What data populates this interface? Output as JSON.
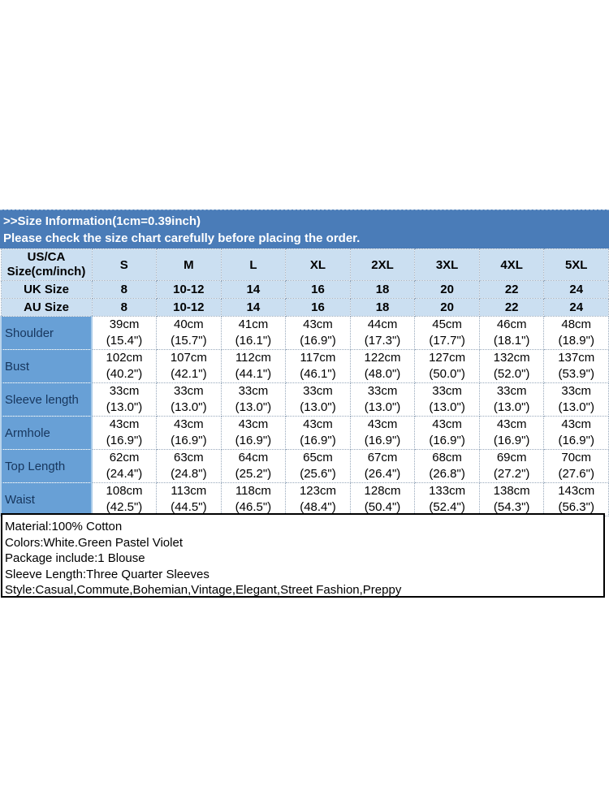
{
  "palette": {
    "banner_bg": "#4a7cb8",
    "banner_text": "#ffffff",
    "header_bg": "#cbdff1",
    "label_col_bg": "#68a0d6",
    "label_text": "#17365d",
    "grid_dotted_border": "#97a8bb",
    "details_border": "#000000"
  },
  "banner": {
    "line1": ">>Size Information(1cm=0.39inch)",
    "line2": "Please check the size chart carefully before placing the order."
  },
  "size_table": {
    "corner": {
      "line1": "US/CA",
      "line2": "Size(cm/inch)"
    },
    "size_headers": [
      "S",
      "M",
      "L",
      "XL",
      "2XL",
      "3XL",
      "4XL",
      "5XL"
    ],
    "conversion_rows": [
      {
        "label": "UK Size",
        "values": [
          "8",
          "10-12",
          "14",
          "16",
          "18",
          "20",
          "22",
          "24"
        ]
      },
      {
        "label": "AU Size",
        "values": [
          "8",
          "10-12",
          "14",
          "16",
          "18",
          "20",
          "22",
          "24"
        ]
      }
    ],
    "measurement_rows": [
      {
        "label": "Shoulder",
        "cm": [
          "39cm",
          "40cm",
          "41cm",
          "43cm",
          "44cm",
          "45cm",
          "46cm",
          "48cm"
        ],
        "inch": [
          "(15.4\")",
          "(15.7\")",
          "(16.1\")",
          "(16.9\")",
          "(17.3\")",
          "(17.7\")",
          "(18.1\")",
          "(18.9\")"
        ]
      },
      {
        "label": "Bust",
        "cm": [
          "102cm",
          "107cm",
          "112cm",
          "117cm",
          "122cm",
          "127cm",
          "132cm",
          "137cm"
        ],
        "inch": [
          "(40.2\")",
          "(42.1\")",
          "(44.1\")",
          "(46.1\")",
          "(48.0\")",
          "(50.0\")",
          "(52.0\")",
          "(53.9\")"
        ]
      },
      {
        "label": "Sleeve length",
        "cm": [
          "33cm",
          "33cm",
          "33cm",
          "33cm",
          "33cm",
          "33cm",
          "33cm",
          "33cm"
        ],
        "inch": [
          "(13.0\")",
          "(13.0\")",
          "(13.0\")",
          "(13.0\")",
          "(13.0\")",
          "(13.0\")",
          "(13.0\")",
          "(13.0\")"
        ]
      },
      {
        "label": "Armhole",
        "cm": [
          "43cm",
          "43cm",
          "43cm",
          "43cm",
          "43cm",
          "43cm",
          "43cm",
          "43cm"
        ],
        "inch": [
          "(16.9\")",
          "(16.9\")",
          "(16.9\")",
          "(16.9\")",
          "(16.9\")",
          "(16.9\")",
          "(16.9\")",
          "(16.9\")"
        ]
      },
      {
        "label": "Top Length",
        "cm": [
          "62cm",
          "63cm",
          "64cm",
          "65cm",
          "67cm",
          "68cm",
          "69cm",
          "70cm"
        ],
        "inch": [
          "(24.4\")",
          "(24.8\")",
          "(25.2\")",
          "(25.6\")",
          "(26.4\")",
          "(26.8\")",
          "(27.2\")",
          "(27.6\")"
        ]
      },
      {
        "label": "Waist",
        "cm": [
          "108cm",
          "113cm",
          "118cm",
          "123cm",
          "128cm",
          "133cm",
          "138cm",
          "143cm"
        ],
        "inch": [
          "(42.5\")",
          "(44.5\")",
          "(46.5\")",
          "(48.4\")",
          "(50.4\")",
          "(52.4\")",
          "(54.3\")",
          "(56.3\")"
        ]
      }
    ]
  },
  "details": {
    "lines": [
      "Material:100% Cotton",
      "Colors:White.Green Pastel Violet",
      "Package include:1 Blouse",
      "Sleeve Length:Three Quarter Sleeves",
      "Style:Casual,Commute,Bohemian,Vintage,Elegant,Street Fashion,Preppy"
    ]
  }
}
